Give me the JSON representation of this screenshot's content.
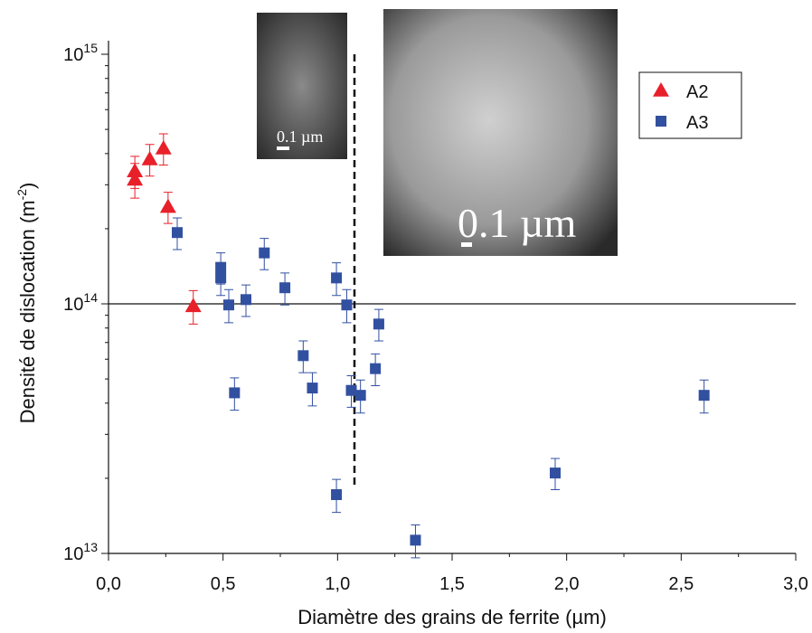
{
  "chart_data": {
    "type": "scatter",
    "xlabel": "Diamètre des grains de ferrite (µm)",
    "ylabel": {
      "text": "Densité de dislocation (m",
      "sup": "-2",
      "end": ")"
    },
    "xlim": [
      0,
      3.0
    ],
    "xticks": [
      {
        "value": 0,
        "label": "0,0"
      },
      {
        "value": 0.5,
        "label": "0,5"
      },
      {
        "value": 1.0,
        "label": "1,0"
      },
      {
        "value": 1.5,
        "label": "1,5"
      },
      {
        "value": 2.0,
        "label": "2,0"
      },
      {
        "value": 2.5,
        "label": "2,5"
      },
      {
        "value": 3.0,
        "label": "3,0"
      }
    ],
    "ylim": [
      10000000000000.0,
      1000000000000000.0
    ],
    "log_y": true,
    "yticks": [
      {
        "value": 10000000000000.0,
        "label": "10",
        "sup": "13"
      },
      {
        "value": 100000000000000.0,
        "label": "10",
        "sup": "14"
      },
      {
        "value": 1000000000000000.0,
        "label": "10",
        "sup": "15"
      }
    ],
    "reference_line": 100000000000000.0,
    "legend": "upper right",
    "annotations": [
      "0.1 µm",
      "0.1 µm"
    ],
    "series": [
      {
        "name": "A2",
        "color": "#e8202a",
        "marker": "triangle",
        "x": [
          0.115,
          0.115,
          0.18,
          0.24,
          0.26,
          0.37
        ],
        "values": [
          340000000000000.0,
          315000000000000.0,
          380000000000000.0,
          420000000000000.0,
          245000000000000.0,
          98000000000000.0
        ],
        "errors": [
          50000000000000.0,
          50000000000000.0,
          55000000000000.0,
          60000000000000.0,
          35000000000000.0,
          15000000000000.0
        ]
      },
      {
        "name": "A3",
        "color": "#3250a0",
        "marker": "square",
        "x": [
          0.3,
          0.49,
          0.49,
          0.525,
          0.55,
          0.6,
          0.68,
          0.77,
          0.85,
          0.89,
          0.995,
          0.995,
          1.04,
          1.06,
          1.1,
          1.165,
          1.18,
          1.34,
          1.95,
          2.6
        ],
        "values": [
          193000000000000.0,
          140000000000000.0,
          127000000000000.0,
          99000000000000.0,
          44000000000000.0,
          104000000000000.0,
          160000000000000.0,
          116000000000000.0,
          62000000000000.0,
          46000000000000.0,
          127000000000000.0,
          17200000000000.0,
          99000000000000.0,
          45000000000000.0,
          43000000000000.0,
          55000000000000.0,
          83000000000000.0,
          11300000000000.0,
          21000000000000.0,
          43000000000000.0
        ],
        "errors": [
          28000000000000.0,
          20000000000000.0,
          19000000000000.0,
          15000000000000.0,
          6500000000000.0,
          15000000000000.0,
          23000000000000.0,
          17000000000000.0,
          9000000000000.0,
          7000000000000.0,
          19000000000000.0,
          2600000000000.0,
          15000000000000.0,
          6500000000000.0,
          6500000000000.0,
          8000000000000.0,
          12000000000000.0,
          1700000000000.0,
          3000000000000.0,
          6500000000000.0
        ]
      }
    ]
  }
}
